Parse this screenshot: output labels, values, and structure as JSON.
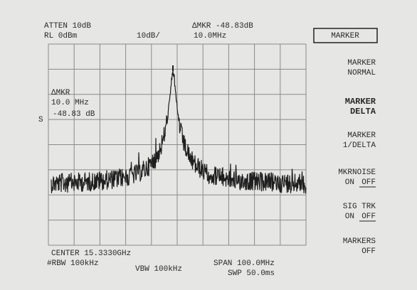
{
  "header": {
    "atten": "ATTEN 10dB",
    "ref_level": "RL 0dBm",
    "scale": "10dB/",
    "delta_marker": "ΔMKR -48.83dB",
    "delta_freq": "10.0MHz"
  },
  "marker_readout": {
    "label": "ΔMKR",
    "freq": "10.0 MHz",
    "amplitude": "-48.83 dB"
  },
  "side_mark": "S",
  "footer": {
    "center": "CENTER 15.3330GHz",
    "rbw": "#RBW 100kHz",
    "vbw": "VBW 100kHz",
    "span": "SPAN 100.0MHz",
    "sweep": "SWP 50.0ms"
  },
  "softkeys": [
    {
      "lines": [
        "MARKER"
      ],
      "boxed": true
    },
    {
      "lines": [
        "MARKER",
        "NORMAL"
      ]
    },
    {
      "lines": [
        "MARKER",
        "DELTA"
      ],
      "bold": true
    },
    {
      "lines": [
        "MARKER",
        "1/DELTA"
      ]
    },
    {
      "lines": [
        "MKRNOISE"
      ],
      "state": [
        "ON",
        "OFF"
      ]
    },
    {
      "lines": [
        "SIG TRK"
      ],
      "state": [
        "ON",
        "OFF"
      ]
    },
    {
      "lines": [
        "MARKERS",
        "OFF"
      ]
    }
  ]
}
